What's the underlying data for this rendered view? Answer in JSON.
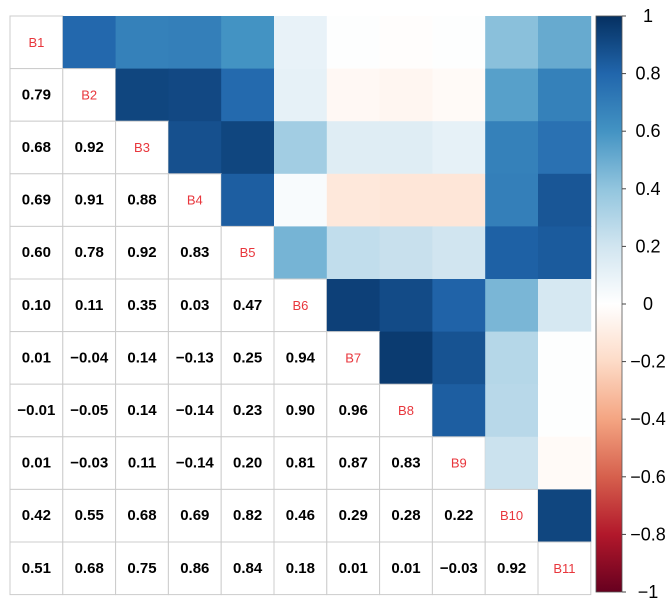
{
  "chart_data": {
    "type": "heatmap",
    "variables": [
      "B1",
      "B2",
      "B3",
      "B4",
      "B5",
      "B6",
      "B7",
      "B8",
      "B9",
      "B10",
      "B11"
    ],
    "matrix": [
      [
        1.0,
        0.79,
        0.68,
        0.69,
        0.6,
        0.1,
        0.01,
        -0.01,
        0.01,
        0.42,
        0.51
      ],
      [
        0.79,
        1.0,
        0.92,
        0.91,
        0.78,
        0.11,
        -0.04,
        -0.05,
        -0.03,
        0.55,
        0.68
      ],
      [
        0.68,
        0.92,
        1.0,
        0.88,
        0.92,
        0.35,
        0.14,
        0.14,
        0.11,
        0.68,
        0.75
      ],
      [
        0.69,
        0.91,
        0.88,
        1.0,
        0.83,
        0.03,
        -0.13,
        -0.14,
        -0.14,
        0.69,
        0.86
      ],
      [
        0.6,
        0.78,
        0.92,
        0.83,
        1.0,
        0.47,
        0.25,
        0.23,
        0.2,
        0.82,
        0.84
      ],
      [
        0.1,
        0.11,
        0.35,
        0.03,
        0.47,
        1.0,
        0.94,
        0.9,
        0.81,
        0.46,
        0.18
      ],
      [
        0.01,
        -0.04,
        0.14,
        -0.13,
        0.25,
        0.94,
        1.0,
        0.96,
        0.87,
        0.29,
        0.01
      ],
      [
        -0.01,
        -0.05,
        0.14,
        -0.14,
        0.23,
        0.9,
        0.96,
        1.0,
        0.83,
        0.28,
        0.01
      ],
      [
        0.01,
        -0.03,
        0.11,
        -0.14,
        0.2,
        0.81,
        0.87,
        0.83,
        1.0,
        0.22,
        -0.03
      ],
      [
        0.42,
        0.55,
        0.68,
        0.69,
        0.82,
        0.46,
        0.29,
        0.28,
        0.22,
        1.0,
        0.92
      ],
      [
        0.51,
        0.68,
        0.75,
        0.86,
        0.84,
        0.18,
        0.01,
        0.01,
        -0.03,
        0.92,
        1.0
      ]
    ],
    "lower_triangle": "numbers",
    "upper_triangle": "colored squares",
    "diagonal": "variable names",
    "colorbar": {
      "range": [
        -1,
        1
      ],
      "ticks": [
        "1",
        "0.8",
        "0.6",
        "0.4",
        "0.2",
        "0",
        "−0.2",
        "−0.4",
        "−0.6",
        "−0.8",
        "−1"
      ],
      "colors": [
        "#67001f",
        "#b2182b",
        "#d6604d",
        "#f4a582",
        "#fddbc7",
        "#ffffff",
        "#d1e5f0",
        "#92c5de",
        "#4393c3",
        "#2166ac",
        "#053061"
      ]
    },
    "label_color": "#e8363c",
    "value_text_color": "#000000",
    "grid_color": "#cccccc"
  }
}
